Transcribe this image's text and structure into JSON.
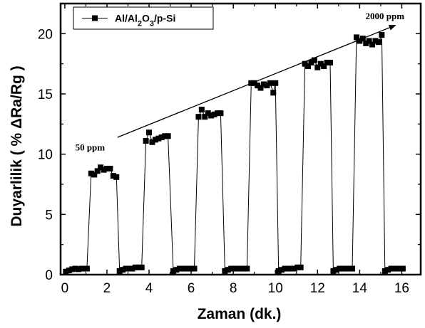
{
  "chart_data": {
    "type": "line",
    "xlabel": "Zaman (dk.)",
    "ylabel": "Duyarlilik ( % ΔRa/Rg )",
    "xlim": [
      -0.2,
      16.9
    ],
    "ylim": [
      0,
      22.5
    ],
    "x_ticks": [
      0,
      2,
      4,
      6,
      8,
      10,
      12,
      14,
      16
    ],
    "x_tick_labels": [
      "0",
      "2",
      "4",
      "6",
      "8",
      "10",
      "12",
      "14",
      "16"
    ],
    "y_ticks": [
      0,
      5,
      10,
      15,
      20
    ],
    "y_tick_labels": [
      "0",
      "5",
      "10",
      "15",
      "20"
    ],
    "legend": {
      "placement": "top-left",
      "entries": [
        "Al/Al2O3/p-Si"
      ]
    },
    "annotations": [
      {
        "text": "50 ppm",
        "x": 1.2,
        "y": 10.3
      },
      {
        "text": "2000 ppm",
        "x": 15.2,
        "y": 21.2
      }
    ],
    "arrow": {
      "from": [
        2.5,
        11.4
      ],
      "to": [
        15.7,
        20.7
      ]
    },
    "series": [
      {
        "name": "Al/Al2O3/p-Si",
        "color": "#000000",
        "marker": "square",
        "points": [
          [
            0.05,
            0.25
          ],
          [
            0.2,
            0.35
          ],
          [
            0.35,
            0.45
          ],
          [
            0.5,
            0.5
          ],
          [
            0.65,
            0.45
          ],
          [
            0.8,
            0.5
          ],
          [
            0.95,
            0.5
          ],
          [
            1.05,
            0.5
          ],
          [
            1.25,
            8.4
          ],
          [
            1.4,
            8.3
          ],
          [
            1.55,
            8.6
          ],
          [
            1.7,
            8.9
          ],
          [
            1.85,
            8.7
          ],
          [
            2.0,
            8.8
          ],
          [
            2.15,
            8.8
          ],
          [
            2.3,
            8.2
          ],
          [
            2.45,
            8.1
          ],
          [
            2.6,
            0.3
          ],
          [
            2.75,
            0.4
          ],
          [
            2.9,
            0.5
          ],
          [
            3.05,
            0.5
          ],
          [
            3.2,
            0.5
          ],
          [
            3.35,
            0.6
          ],
          [
            3.5,
            0.6
          ],
          [
            3.65,
            0.6
          ],
          [
            3.85,
            11.1
          ],
          [
            4.0,
            11.8
          ],
          [
            4.15,
            11.0
          ],
          [
            4.3,
            11.2
          ],
          [
            4.45,
            11.3
          ],
          [
            4.6,
            11.4
          ],
          [
            4.75,
            11.5
          ],
          [
            4.9,
            11.5
          ],
          [
            5.15,
            0.3
          ],
          [
            5.3,
            0.4
          ],
          [
            5.45,
            0.5
          ],
          [
            5.6,
            0.5
          ],
          [
            5.75,
            0.5
          ],
          [
            5.9,
            0.5
          ],
          [
            6.05,
            0.5
          ],
          [
            6.15,
            0.5
          ],
          [
            6.35,
            13.1
          ],
          [
            6.5,
            13.7
          ],
          [
            6.65,
            13.1
          ],
          [
            6.8,
            13.4
          ],
          [
            6.95,
            13.2
          ],
          [
            7.1,
            13.3
          ],
          [
            7.25,
            13.4
          ],
          [
            7.4,
            13.4
          ],
          [
            7.6,
            0.3
          ],
          [
            7.75,
            0.4
          ],
          [
            7.9,
            0.5
          ],
          [
            8.05,
            0.5
          ],
          [
            8.2,
            0.5
          ],
          [
            8.35,
            0.5
          ],
          [
            8.5,
            0.5
          ],
          [
            8.65,
            0.5
          ],
          [
            8.85,
            15.9
          ],
          [
            9.0,
            15.9
          ],
          [
            9.15,
            15.7
          ],
          [
            9.3,
            15.5
          ],
          [
            9.45,
            15.8
          ],
          [
            9.6,
            15.7
          ],
          [
            9.75,
            15.9
          ],
          [
            9.9,
            15.1
          ],
          [
            10.0,
            15.9
          ],
          [
            10.15,
            0.3
          ],
          [
            10.3,
            0.4
          ],
          [
            10.45,
            0.5
          ],
          [
            10.6,
            0.5
          ],
          [
            10.75,
            0.5
          ],
          [
            10.9,
            0.5
          ],
          [
            11.05,
            0.6
          ],
          [
            11.2,
            0.6
          ],
          [
            11.4,
            17.5
          ],
          [
            11.55,
            17.3
          ],
          [
            11.7,
            17.6
          ],
          [
            11.85,
            17.8
          ],
          [
            12.0,
            17.2
          ],
          [
            12.15,
            17.5
          ],
          [
            12.3,
            17.3
          ],
          [
            12.45,
            17.6
          ],
          [
            12.6,
            17.6
          ],
          [
            12.75,
            0.3
          ],
          [
            12.9,
            0.4
          ],
          [
            13.05,
            0.5
          ],
          [
            13.2,
            0.5
          ],
          [
            13.35,
            0.5
          ],
          [
            13.5,
            0.5
          ],
          [
            13.65,
            0.5
          ],
          [
            13.85,
            19.7
          ],
          [
            14.0,
            19.4
          ],
          [
            14.15,
            19.6
          ],
          [
            14.3,
            19.2
          ],
          [
            14.45,
            19.4
          ],
          [
            14.6,
            19.1
          ],
          [
            14.75,
            19.4
          ],
          [
            14.9,
            19.3
          ],
          [
            15.05,
            19.9
          ],
          [
            15.2,
            0.3
          ],
          [
            15.35,
            0.4
          ],
          [
            15.5,
            0.5
          ],
          [
            15.65,
            0.5
          ],
          [
            15.8,
            0.5
          ],
          [
            15.95,
            0.5
          ],
          [
            16.05,
            0.5
          ]
        ]
      }
    ]
  }
}
